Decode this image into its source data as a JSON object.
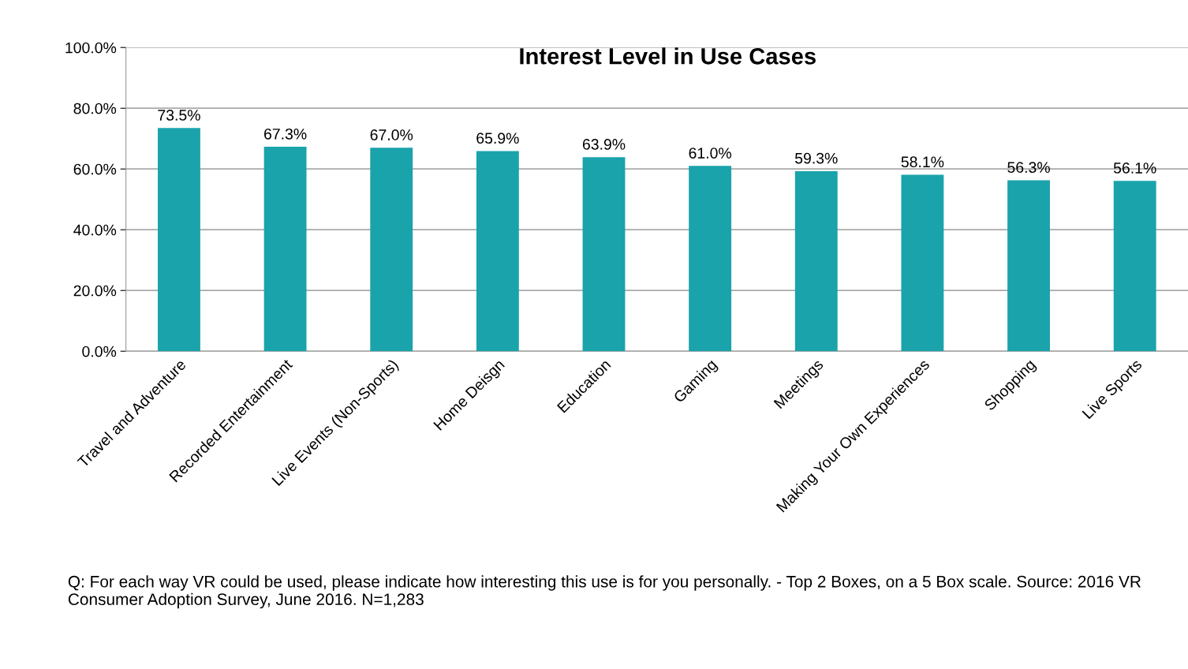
{
  "chart_data": {
    "type": "bar",
    "title": "Interest Level in Use Cases",
    "categories": [
      "Travel and Adventure",
      "Recorded Entertainment",
      "Live Events (Non-Sports)",
      "Home Deisgn",
      "Education",
      "Gaming",
      "Meetings",
      "Making Your Own Experiences",
      "Shopping",
      "Live Sports"
    ],
    "values": [
      73.5,
      67.3,
      67.0,
      65.9,
      63.9,
      61.0,
      59.3,
      58.1,
      56.3,
      56.1
    ],
    "value_labels": [
      "73.5%",
      "67.3%",
      "67.0%",
      "65.9%",
      "63.9%",
      "61.0%",
      "59.3%",
      "58.1%",
      "56.3%",
      "56.1%"
    ],
    "color": "#1aa3ab",
    "ylim": [
      0,
      100
    ],
    "yticks": [
      {
        "value": 0,
        "label": "0.0%"
      },
      {
        "value": 20,
        "label": "20.0%"
      },
      {
        "value": 40,
        "label": "40.0%"
      },
      {
        "value": 60,
        "label": "60.0%"
      },
      {
        "value": 80,
        "label": "80.0%"
      },
      {
        "value": 100,
        "label": "100.0%"
      }
    ],
    "grid": "y",
    "annotations": [
      "Q: For each way VR could be used, please indicate how interesting this use is for you personally. - Top 2 Boxes, on a 5 Box scale. Source: 2016 VR Consumer Adoption Survey, June 2016. N=1,283"
    ]
  }
}
